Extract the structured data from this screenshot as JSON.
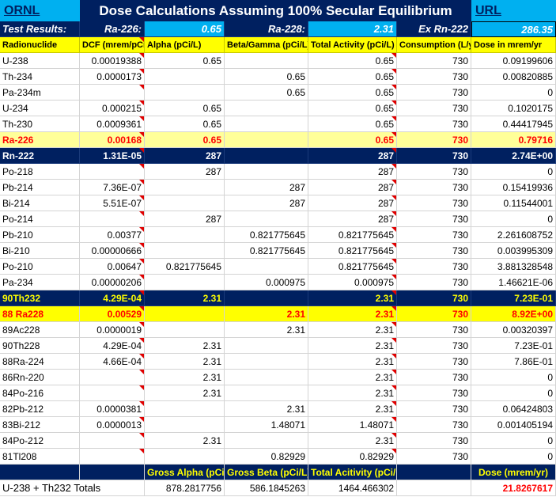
{
  "title_row": {
    "ornl_link": "ORNL",
    "title": "Dose Calculations Assuming 100% Secular Equilibrium",
    "url_link": "URL"
  },
  "test_results": {
    "label": "Test Results:",
    "ra226_label": "Ra-226:",
    "ra226_value": "0.65",
    "ra228_label": "Ra-228:",
    "ra228_value": "2.31",
    "exrn_label": "Ex Rn-222",
    "exrn_value": "286.35"
  },
  "headers": [
    "Radionuclide",
    "DCF (mrem/pCi",
    "Alpha (pCi/L)",
    "Beta/Gamma (pCi/L)",
    "Total Activity (pCi/L)",
    "Consumption (L/yr",
    "Dose in mrem/yr"
  ],
  "rows": [
    {
      "style": "plain",
      "cells": [
        "U-238",
        "0.00019388",
        "0.65",
        "",
        "0.65",
        "730",
        "0.09199606"
      ]
    },
    {
      "style": "plain",
      "cells": [
        "Th-234",
        "0.0000173",
        "",
        "0.65",
        "0.65",
        "730",
        "0.00820885"
      ]
    },
    {
      "style": "plain",
      "cells": [
        "Pa-234m",
        "",
        "",
        "0.65",
        "0.65",
        "730",
        "0"
      ]
    },
    {
      "style": "plain",
      "cells": [
        "U-234",
        "0.000215",
        "0.65",
        "",
        "0.65",
        "730",
        "0.1020175"
      ]
    },
    {
      "style": "plain",
      "cells": [
        "Th-230",
        "0.0009361",
        "0.65",
        "",
        "0.65",
        "730",
        "0.44417945"
      ]
    },
    {
      "style": "lightyellow",
      "cells": [
        "Ra-226",
        "0.00168",
        "0.65",
        "",
        "0.65",
        "730",
        "0.79716"
      ]
    },
    {
      "style": "navy",
      "cells": [
        "Rn-222",
        "1.31E-05",
        "287",
        "",
        "287",
        "730",
        "2.74E+00"
      ]
    },
    {
      "style": "plain",
      "cells": [
        "Po-218",
        "",
        "287",
        "",
        "287",
        "730",
        "0"
      ]
    },
    {
      "style": "plain",
      "cells": [
        "Pb-214",
        "7.36E-07",
        "",
        "287",
        "287",
        "730",
        "0.15419936"
      ]
    },
    {
      "style": "plain",
      "cells": [
        "Bi-214",
        "5.51E-07",
        "",
        "287",
        "287",
        "730",
        "0.11544001"
      ]
    },
    {
      "style": "plain",
      "cells": [
        "Po-214",
        "",
        "287",
        "",
        "287",
        "730",
        "0"
      ]
    },
    {
      "style": "plain",
      "cells": [
        "Pb-210",
        "0.00377",
        "",
        "0.821775645",
        "0.821775645",
        "730",
        "2.261608752"
      ]
    },
    {
      "style": "plain",
      "cells": [
        "Bi-210",
        "0.00000666",
        "",
        "0.821775645",
        "0.821775645",
        "730",
        "0.003995309"
      ]
    },
    {
      "style": "plain",
      "cells": [
        "Po-210",
        "0.00647",
        "0.821775645",
        "",
        "0.821775645",
        "730",
        "3.881328548"
      ]
    },
    {
      "style": "plain",
      "cells": [
        "Pa-234",
        "0.00000206",
        "",
        "0.000975",
        "0.000975",
        "730",
        "1.46621E-06"
      ]
    },
    {
      "style": "navy-yellow",
      "cells": [
        "90Th232",
        "4.29E-04",
        "2.31",
        "",
        "2.31",
        "730",
        "7.23E-01"
      ]
    },
    {
      "style": "yellow-red",
      "cells": [
        "88 Ra228",
        "0.00529",
        "",
        "2.31",
        "2.31",
        "730",
        "8.92E+00"
      ]
    },
    {
      "style": "plain",
      "cells": [
        "89Ac228",
        "0.0000019",
        "",
        "2.31",
        "2.31",
        "730",
        "0.00320397"
      ]
    },
    {
      "style": "plain",
      "cells": [
        "90Th228",
        "4.29E-04",
        "2.31",
        "",
        "2.31",
        "730",
        "7.23E-01"
      ]
    },
    {
      "style": "plain",
      "cells": [
        "88Ra-224",
        "4.66E-04",
        "2.31",
        "",
        "2.31",
        "730",
        "7.86E-01"
      ]
    },
    {
      "style": "plain",
      "cells": [
        "86Rn-220",
        "",
        "2.31",
        "",
        "2.31",
        "730",
        "0"
      ]
    },
    {
      "style": "plain",
      "cells": [
        "84Po-216",
        "",
        "2.31",
        "",
        "2.31",
        "730",
        "0"
      ]
    },
    {
      "style": "plain",
      "cells": [
        "82Pb-212",
        "0.0000381",
        "",
        "2.31",
        "2.31",
        "730",
        "0.06424803"
      ]
    },
    {
      "style": "plain",
      "cells": [
        "83Bi-212",
        "0.0000013",
        "",
        "1.48071",
        "1.48071",
        "730",
        "0.001405194"
      ]
    },
    {
      "style": "plain",
      "cells": [
        "84Po-212",
        "",
        "2.31",
        "",
        "2.31",
        "730",
        "0"
      ]
    },
    {
      "style": "plain",
      "cells": [
        "81Tl208",
        "",
        "",
        "0.82929",
        "0.82929",
        "730",
        "0"
      ]
    }
  ],
  "totals_headers": {
    "gross_alpha": "Gross Alpha (pCi/L",
    "gross_beta": "Gross Beta (pCi/L)",
    "total_activity": "Total Acitivity (pCi/L)",
    "dose": "Dose (mrem/yr)"
  },
  "totals": {
    "label": "U-238 + Th232 Totals",
    "gross_alpha": "878.2817756",
    "gross_beta": "586.1845263",
    "total_activity": "1464.466302",
    "dose": "21.8267617"
  }
}
